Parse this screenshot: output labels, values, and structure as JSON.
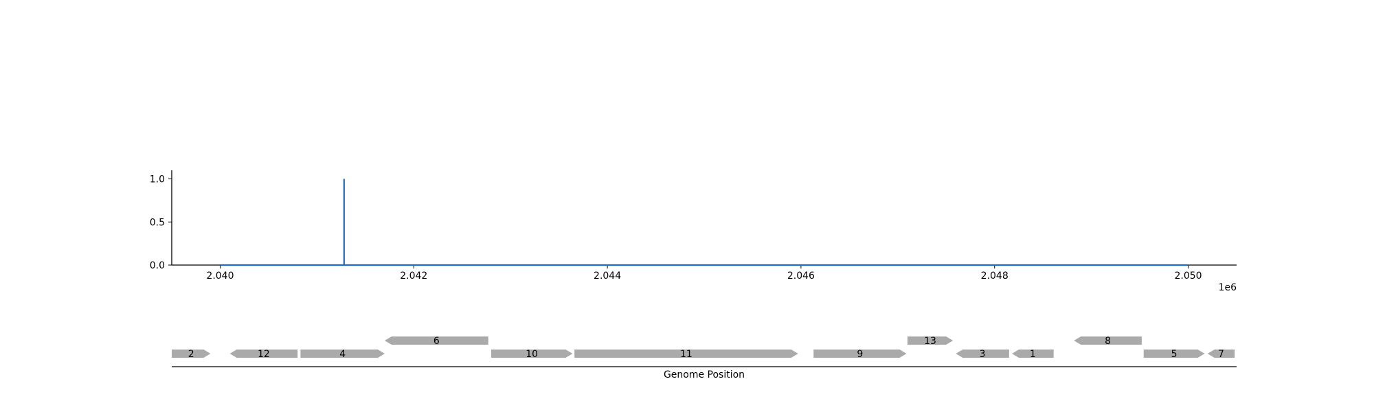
{
  "chart_data": [
    {
      "type": "line",
      "title": "",
      "xlabel": "",
      "ylabel": "",
      "x_offset_label": "1e6",
      "xlim": [
        2039500,
        2050500
      ],
      "ylim": [
        0,
        1.1
      ],
      "x_ticks": [
        2040000,
        2042000,
        2044000,
        2046000,
        2048000,
        2050000
      ],
      "x_tick_labels": [
        "2.040",
        "2.042",
        "2.044",
        "2.046",
        "2.048",
        "2.050"
      ],
      "y_ticks": [
        0.0,
        0.5,
        1.0
      ],
      "y_tick_labels": [
        "0.0",
        "0.5",
        "1.0"
      ],
      "grid": false,
      "series": [
        {
          "color": "#1f6fbf",
          "x": [
            2040000,
            2041280,
            2041280,
            2041280,
            2050000
          ],
          "y": [
            0,
            0,
            1.0,
            0,
            0
          ]
        }
      ]
    },
    {
      "type": "gene_track",
      "xlabel": "Genome Position",
      "xlim": [
        2039500,
        2050500
      ],
      "gene_color": "#aaaaaa",
      "genes": [
        {
          "label": "2",
          "start": 2039500,
          "end": 2039900,
          "strand": 1,
          "row": 0
        },
        {
          "label": "12",
          "start": 2040100,
          "end": 2040800,
          "strand": -1,
          "row": 0
        },
        {
          "label": "4",
          "start": 2040830,
          "end": 2041700,
          "strand": 1,
          "row": 0
        },
        {
          "label": "6",
          "start": 2041700,
          "end": 2042770,
          "strand": -1,
          "row": 1
        },
        {
          "label": "10",
          "start": 2042800,
          "end": 2043640,
          "strand": 1,
          "row": 0
        },
        {
          "label": "11",
          "start": 2043660,
          "end": 2045970,
          "strand": 1,
          "row": 0
        },
        {
          "label": "9",
          "start": 2046130,
          "end": 2047090,
          "strand": 1,
          "row": 0
        },
        {
          "label": "13",
          "start": 2047100,
          "end": 2047570,
          "strand": 1,
          "row": 1
        },
        {
          "label": "3",
          "start": 2047600,
          "end": 2048150,
          "strand": -1,
          "row": 0
        },
        {
          "label": "1",
          "start": 2048180,
          "end": 2048610,
          "strand": -1,
          "row": 0
        },
        {
          "label": "8",
          "start": 2048820,
          "end": 2049520,
          "strand": -1,
          "row": 1
        },
        {
          "label": "5",
          "start": 2049540,
          "end": 2050170,
          "strand": 1,
          "row": 0
        },
        {
          "label": "7",
          "start": 2050200,
          "end": 2050480,
          "strand": -1,
          "row": 0
        }
      ]
    }
  ]
}
